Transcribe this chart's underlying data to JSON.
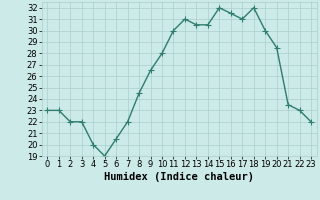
{
  "x": [
    0,
    1,
    2,
    3,
    4,
    5,
    6,
    7,
    8,
    9,
    10,
    11,
    12,
    13,
    14,
    15,
    16,
    17,
    18,
    19,
    20,
    21,
    22,
    23
  ],
  "y": [
    23,
    23,
    22,
    22,
    20,
    19,
    20.5,
    22,
    24.5,
    26.5,
    28,
    30,
    31,
    30.5,
    30.5,
    32,
    31.5,
    31,
    32,
    30,
    28.5,
    23.5,
    23,
    22
  ],
  "line_color": "#2e7d6e",
  "bg_color": "#cceae7",
  "grid_color": "#aacfcc",
  "xlabel": "Humidex (Indice chaleur)",
  "xlim": [
    -0.5,
    23.5
  ],
  "ylim": [
    19,
    32.5
  ],
  "yticks": [
    19,
    20,
    21,
    22,
    23,
    24,
    25,
    26,
    27,
    28,
    29,
    30,
    31,
    32
  ],
  "xticks": [
    0,
    1,
    2,
    3,
    4,
    5,
    6,
    7,
    8,
    9,
    10,
    11,
    12,
    13,
    14,
    15,
    16,
    17,
    18,
    19,
    20,
    21,
    22,
    23
  ],
  "xlabel_fontsize": 7.5,
  "tick_fontsize": 6,
  "marker": "+",
  "linewidth": 1.0,
  "markersize": 4,
  "markeredgewidth": 0.8
}
